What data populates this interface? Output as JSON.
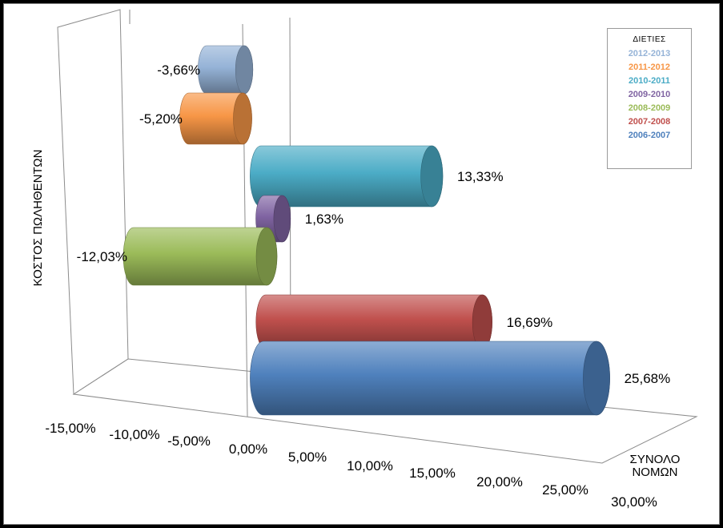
{
  "chart_data": {
    "type": "bar",
    "orientation": "horizontal",
    "style": "3d-cylinder",
    "category": "ΣΥΝΟΛΟ ΝΟΜΩΝ",
    "ylabel": "ΚΟΣΤΟΣ ΠΩΛΗΘΕΝΤΩΝ",
    "xlim": [
      -15,
      30
    ],
    "xticks": [
      "-15,00%",
      "-10,00%",
      "-5,00%",
      "0,00%",
      "5,00%",
      "10,00%",
      "15,00%",
      "20,00%",
      "25,00%",
      "30,00%"
    ],
    "legend_title": "ΔΙΕΤΙΕΣ",
    "legend_position": "top-right",
    "series": [
      {
        "name": "2012-2013",
        "value": -3.66,
        "label": "-3,66%",
        "color": "#95b3d7"
      },
      {
        "name": "2011-2012",
        "value": -5.2,
        "label": "-5,20%",
        "color": "#f79646"
      },
      {
        "name": "2010-2011",
        "value": 13.33,
        "label": "13,33%",
        "color": "#4bacc6"
      },
      {
        "name": "2009-2010",
        "value": 1.63,
        "label": "1,63%",
        "color": "#8064a2"
      },
      {
        "name": "2008-2009",
        "value": -12.03,
        "label": "-12,03%",
        "color": "#9bbb59"
      },
      {
        "name": "2007-2008",
        "value": 16.69,
        "label": "16,69%",
        "color": "#c0504d"
      },
      {
        "name": "2006-2007",
        "value": 25.68,
        "label": "25,68%",
        "color": "#4f81bd"
      }
    ]
  }
}
